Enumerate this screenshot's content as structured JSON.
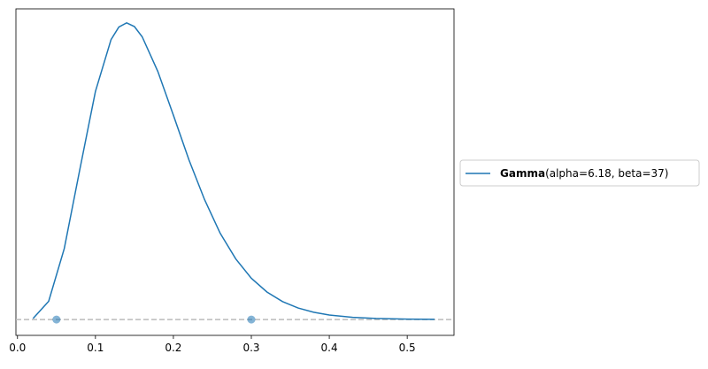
{
  "chart_data": {
    "type": "line",
    "x": [
      0.02,
      0.04,
      0.06,
      0.08,
      0.1,
      0.12,
      0.13,
      0.14,
      0.15,
      0.16,
      0.18,
      0.2,
      0.22,
      0.24,
      0.26,
      0.28,
      0.3,
      0.32,
      0.34,
      0.36,
      0.38,
      0.4,
      0.43,
      0.46,
      0.5,
      0.535
    ],
    "series": [
      {
        "name": "Gamma",
        "params": "(alpha=6.18, beta=37)",
        "color": "#1f77b4",
        "values": [
          0.0226,
          0.391,
          1.52,
          3.22,
          4.89,
          6.0,
          6.27,
          6.36,
          6.28,
          6.06,
          5.32,
          4.38,
          3.42,
          2.57,
          1.85,
          1.3,
          0.884,
          0.59,
          0.385,
          0.247,
          0.156,
          0.097,
          0.0465,
          0.0218,
          0.0076,
          0.003
        ]
      }
    ],
    "points": {
      "x": [
        0.05,
        0.3
      ],
      "values": [
        0,
        0
      ],
      "color": "#1f77b4"
    },
    "hline": 0,
    "xlim": [
      -0.002,
      0.56
    ],
    "ylim": [
      -0.34,
      6.66
    ],
    "xticks": [
      {
        "value": 0,
        "label": "0.0"
      },
      0.1,
      0.2,
      0.3,
      0.4,
      0.5
    ],
    "legend": "right-outside"
  }
}
